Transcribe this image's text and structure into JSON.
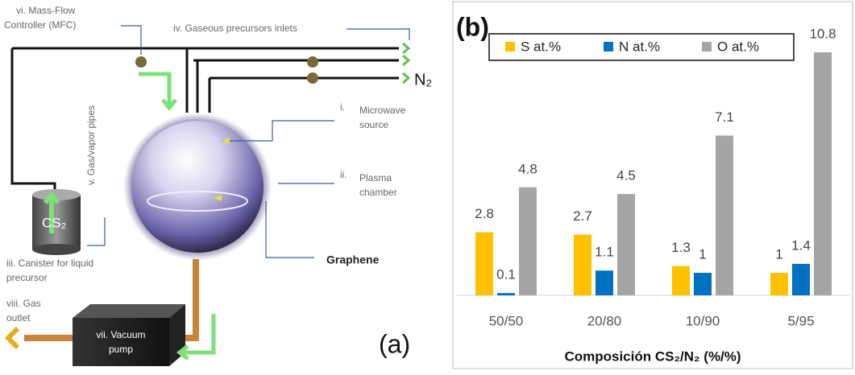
{
  "diagram": {
    "mfc": [
      "vi. Mass-Flow",
      "Controller (MFC)"
    ],
    "inlets": "iv. Gaseous precursors inlets",
    "n2": "N₂",
    "microwave": [
      "i.",
      "Microwave",
      "source"
    ],
    "plasma": [
      "ii.",
      "Plasma",
      "chamber"
    ],
    "graphene": "Graphene",
    "pipes": "v. Gas/vapor pipes",
    "cs2": "CS₂",
    "canister": [
      "iii. Canister for liquid",
      "precursor"
    ],
    "outlet": [
      "viii. Gas",
      "outlet"
    ],
    "pump": [
      "vii. Vacuum",
      "pump"
    ],
    "panel": "(a)"
  },
  "chart_data": {
    "type": "bar",
    "panel": "(b)",
    "xlabel": "Composición CS₂/N₂ (%/%)",
    "categories": [
      "50/50",
      "20/80",
      "10/90",
      "5/95"
    ],
    "series": [
      {
        "name": "S at.%",
        "color": "#ffc000",
        "values": [
          2.8,
          2.7,
          1.3,
          1.0
        ]
      },
      {
        "name": "N at.%",
        "color": "#0070c0",
        "values": [
          0.1,
          1.1,
          1.0,
          1.4
        ]
      },
      {
        "name": "O at.%",
        "color": "#a5a5a5",
        "values": [
          4.8,
          4.5,
          7.1,
          10.8
        ]
      }
    ]
  }
}
